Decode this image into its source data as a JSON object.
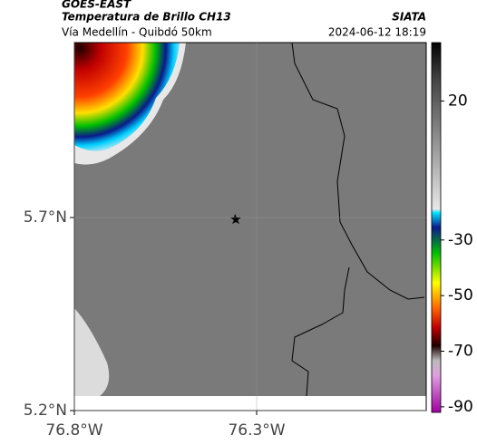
{
  "header": {
    "title": "GOES-EAST",
    "subtitle": "Temperatura de Brillo CH13",
    "source": "SIATA",
    "route": "Vía Medellín - Quibdó 50km",
    "timestamp": "2024-06-12 18:19"
  },
  "map": {
    "latlim": [
      5.2,
      6.153
    ],
    "lonlim": [
      -76.8,
      -75.835
    ],
    "yticks": [
      {
        "value": 5.7,
        "label": "5.7°N"
      },
      {
        "value": 5.2,
        "label": "5.2°N"
      }
    ],
    "xticks": [
      {
        "value": -76.8,
        "label": "76.8°W"
      },
      {
        "value": -76.3,
        "label": "76.3°W"
      }
    ]
  },
  "colorbar": {
    "lim": [
      -92,
      41
    ],
    "ticks": [
      20,
      -30,
      -50,
      -70,
      -90
    ]
  }
}
